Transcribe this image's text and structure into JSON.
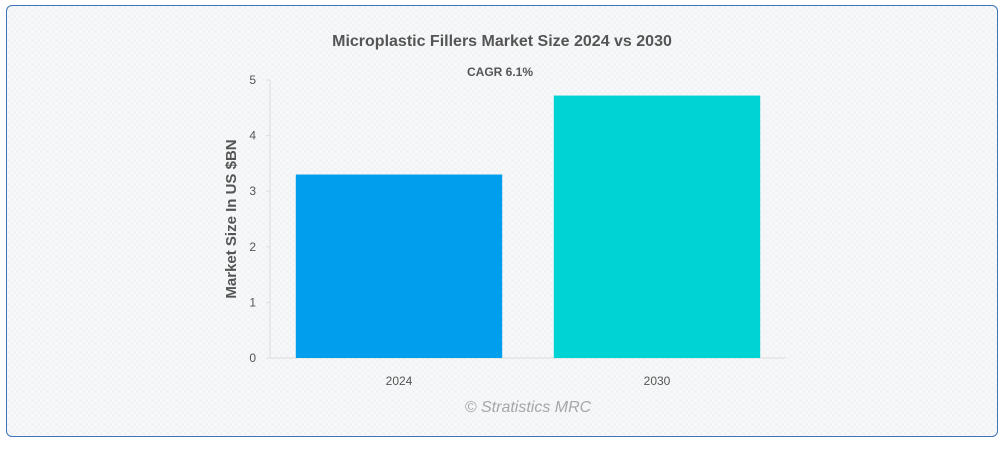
{
  "chart_data": {
    "type": "bar",
    "title": "Microplastic Fillers Market Size 2024 vs 2030",
    "subtitle": "CAGR 6.1%",
    "xlabel": "",
    "ylabel": "Market Size In US $BN",
    "categories": [
      "2024",
      "2030"
    ],
    "values": [
      3.3,
      4.72
    ],
    "ylim": [
      0,
      5
    ],
    "yticks": [
      0,
      1,
      2,
      3,
      4,
      5
    ],
    "colors": [
      "#009fee",
      "#00d3d3"
    ],
    "grid": false,
    "legend": "none"
  },
  "watermark": "© Stratistics MRC"
}
